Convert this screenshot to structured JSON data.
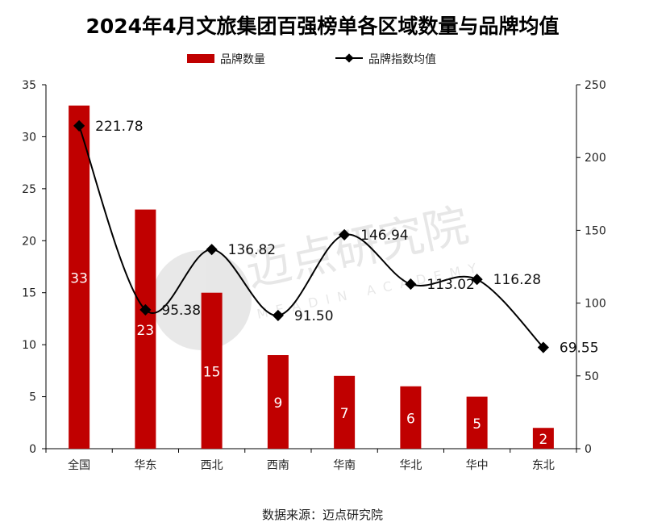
{
  "chart_data": {
    "type": "bar+line",
    "title": "2024年4月文旅集团百强榜单各区域数量与品牌均值",
    "categories": [
      "全国",
      "华东",
      "西北",
      "西南",
      "华南",
      "华北",
      "华中",
      "东北"
    ],
    "series": [
      {
        "name": "品牌数量",
        "type": "bar",
        "axis": "left",
        "values": [
          33,
          23,
          15,
          9,
          7,
          6,
          5,
          2
        ],
        "color": "#C00000"
      },
      {
        "name": "品牌指数均值",
        "type": "line",
        "axis": "right",
        "values": [
          221.78,
          95.38,
          136.82,
          91.5,
          146.94,
          113.02,
          116.28,
          69.55
        ],
        "labels": [
          "221.78",
          "95.38",
          "136.82",
          "91.50",
          "146.94",
          "113.02",
          "116.28",
          "69.55"
        ],
        "color": "#000000",
        "marker": "diamond",
        "smooth": true
      }
    ],
    "y_left": {
      "lim": [
        0,
        35
      ],
      "ticks": [
        0,
        5,
        10,
        15,
        20,
        25,
        30,
        35
      ]
    },
    "y_right": {
      "lim": [
        0,
        250
      ],
      "ticks": [
        0,
        50,
        100,
        150,
        200,
        250
      ]
    },
    "legend_placement": "top-center",
    "grid": false
  },
  "source": "数据来源：迈点研究院",
  "watermark": {
    "text": "迈点研究院",
    "sub": "MEADIN ACADEMY"
  }
}
